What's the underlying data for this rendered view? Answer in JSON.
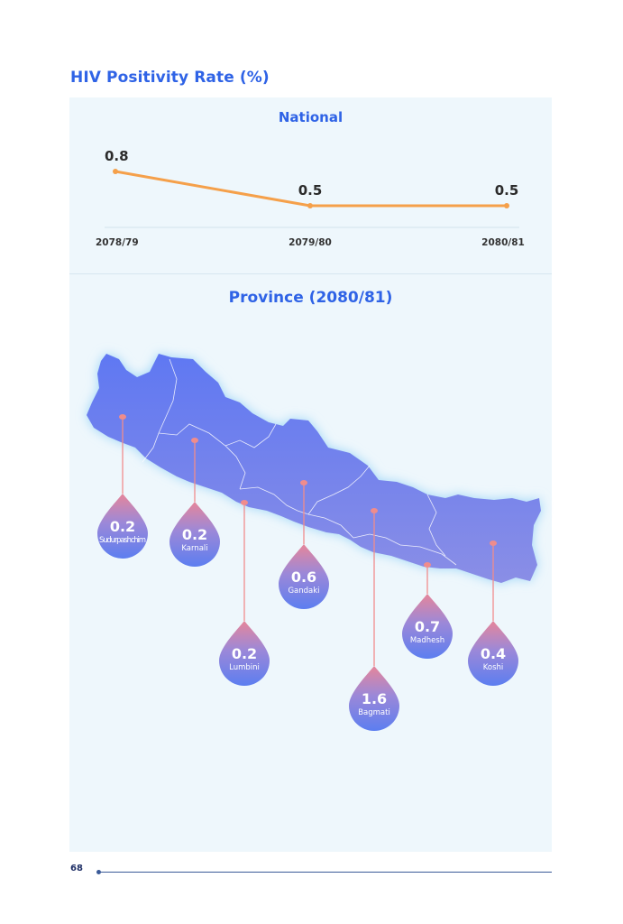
{
  "page": {
    "title": "HIV Positivity Rate (%)",
    "page_number": "68"
  },
  "colors": {
    "title": "#2f63e6",
    "line": "#f5a04a",
    "map": "#6b7df0",
    "drop_top": "#e6869a",
    "drop_bottom": "#5c7ef0",
    "panel_background": "#eef7fc"
  },
  "chart_data": [
    {
      "type": "line",
      "title": "National",
      "x": [
        "2078/79",
        "2079/80",
        "2080/81"
      ],
      "series": [
        {
          "values": [
            0.8,
            0.5,
            0.5
          ]
        }
      ],
      "value_labels": [
        "0.8",
        "0.5",
        "0.5"
      ],
      "ylim": [
        0.4,
        0.9
      ],
      "grid": false
    },
    {
      "type": "map",
      "title": "Province (2080/81)",
      "provinces": [
        {
          "name": "Sudurpashchim",
          "value": 0.2,
          "label": "0.2"
        },
        {
          "name": "Karnali",
          "value": 0.2,
          "label": "0.2"
        },
        {
          "name": "Lumbini",
          "value": 0.2,
          "label": "0.2"
        },
        {
          "name": "Gandaki",
          "value": 0.6,
          "label": "0.6"
        },
        {
          "name": "Bagmati",
          "value": 1.6,
          "label": "1.6"
        },
        {
          "name": "Madhesh",
          "value": 0.7,
          "label": "0.7"
        },
        {
          "name": "Koshi",
          "value": 0.4,
          "label": "0.4"
        }
      ]
    }
  ]
}
